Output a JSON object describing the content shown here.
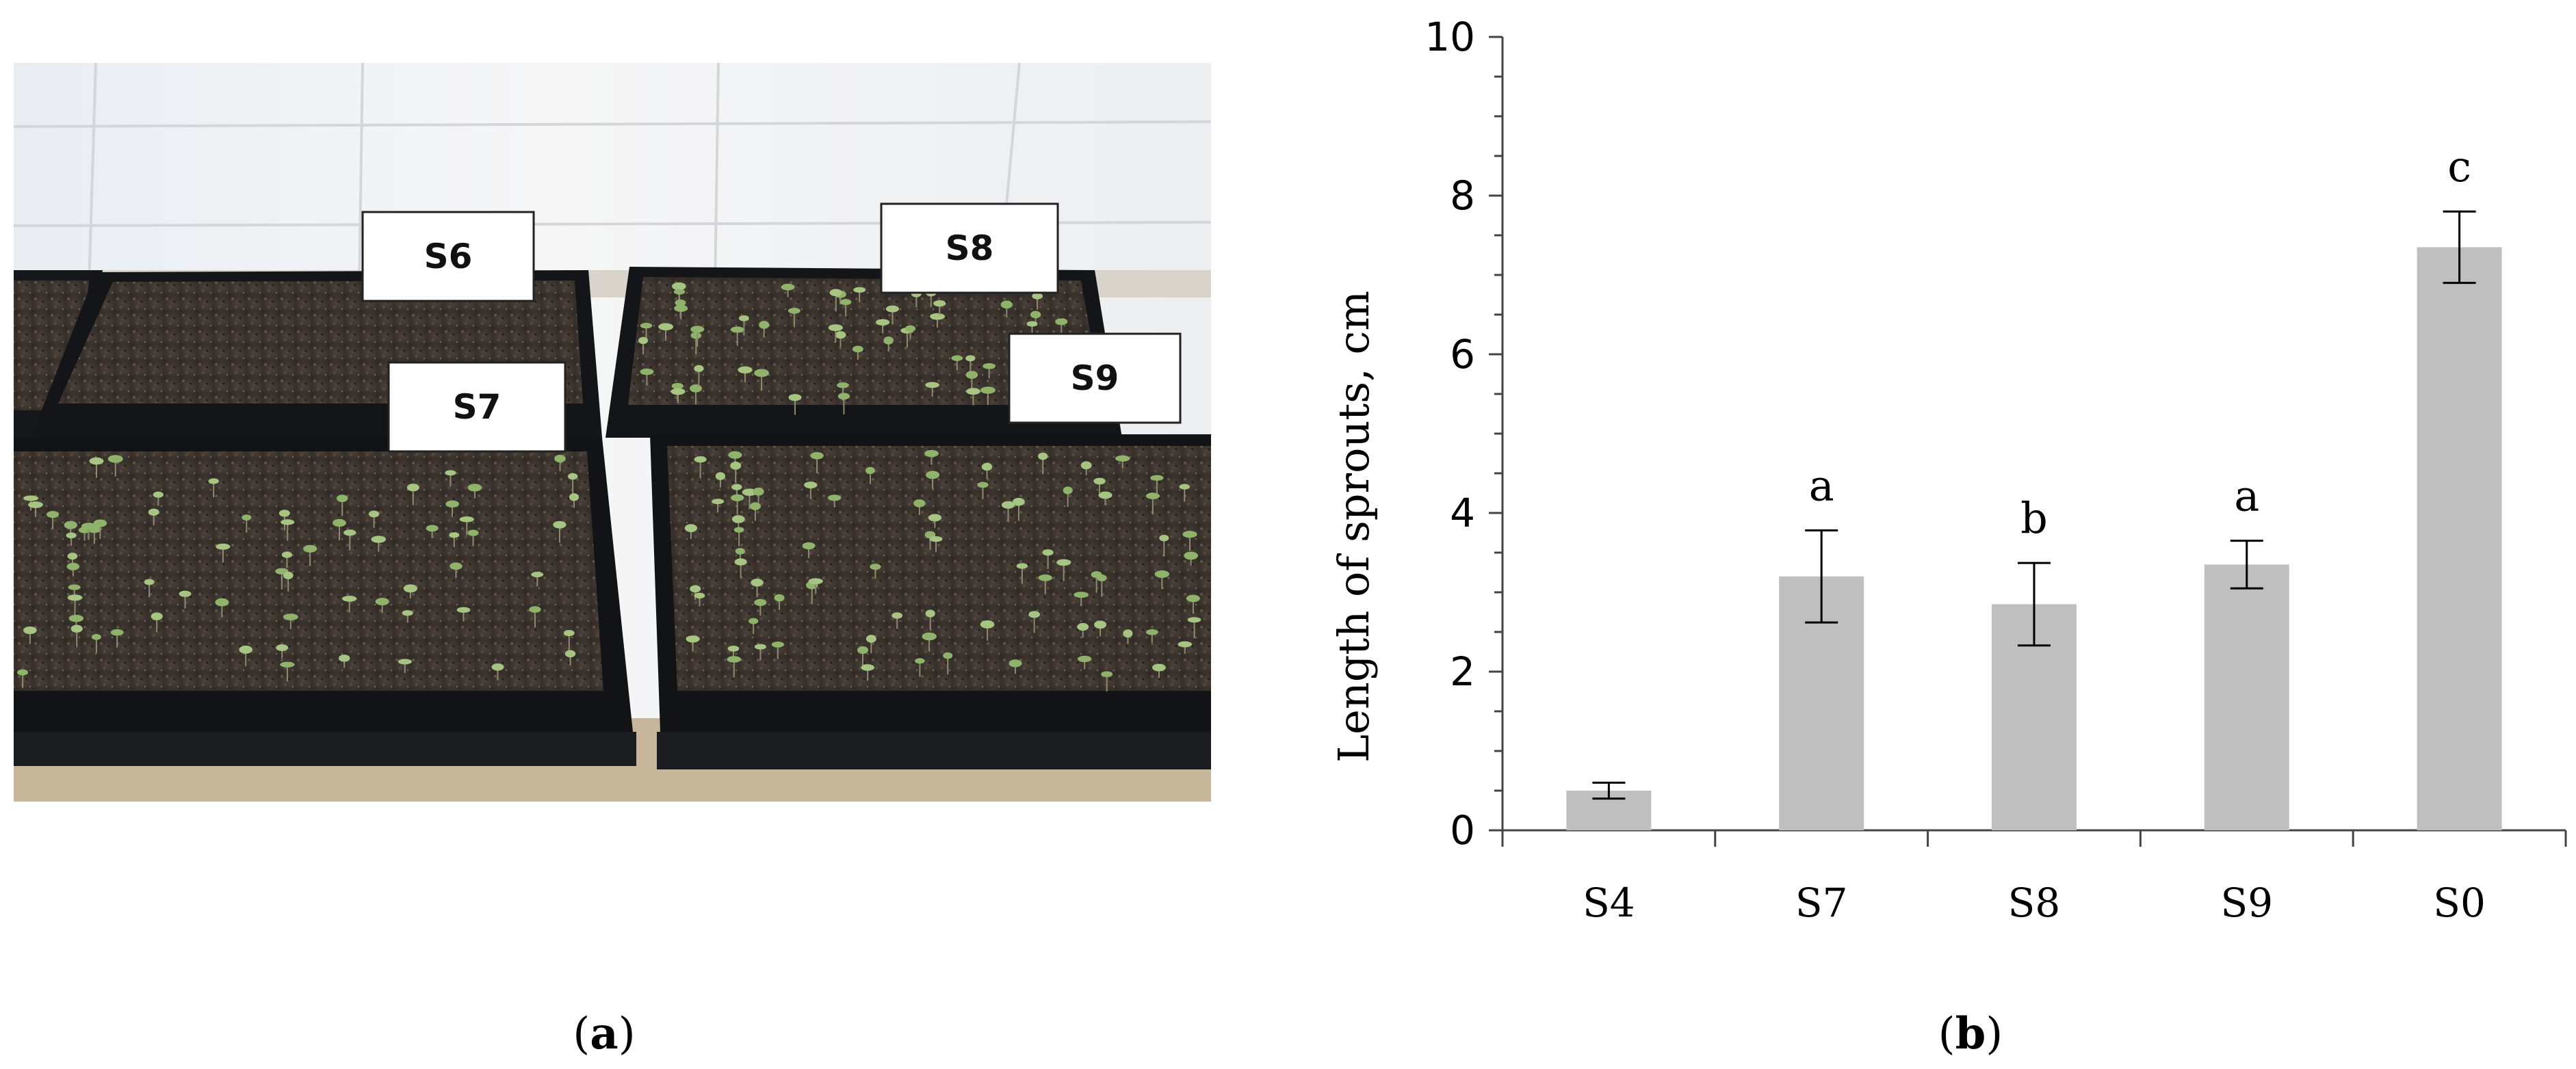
{
  "photo": {
    "panel_letter": "a",
    "trays": [
      {
        "label": "S6"
      },
      {
        "label": "S7"
      },
      {
        "label": "S8"
      },
      {
        "label": "S9"
      }
    ]
  },
  "chart_panel": {
    "panel_letter": "b"
  },
  "chart_data": {
    "type": "bar",
    "categories": [
      "S4",
      "S7",
      "S8",
      "S9",
      "S0"
    ],
    "values": [
      0.5,
      3.2,
      2.85,
      3.35,
      7.35
    ],
    "error": [
      0.1,
      0.58,
      0.52,
      0.3,
      0.45
    ],
    "significance": [
      "",
      "a",
      "b",
      "a",
      "c"
    ],
    "ylabel": "Length of sprouts, cm",
    "ylim": [
      0,
      10
    ],
    "yticks": [
      0,
      2,
      4,
      6,
      8,
      10
    ],
    "bar_color": "#bfbfbf",
    "grid": false
  }
}
